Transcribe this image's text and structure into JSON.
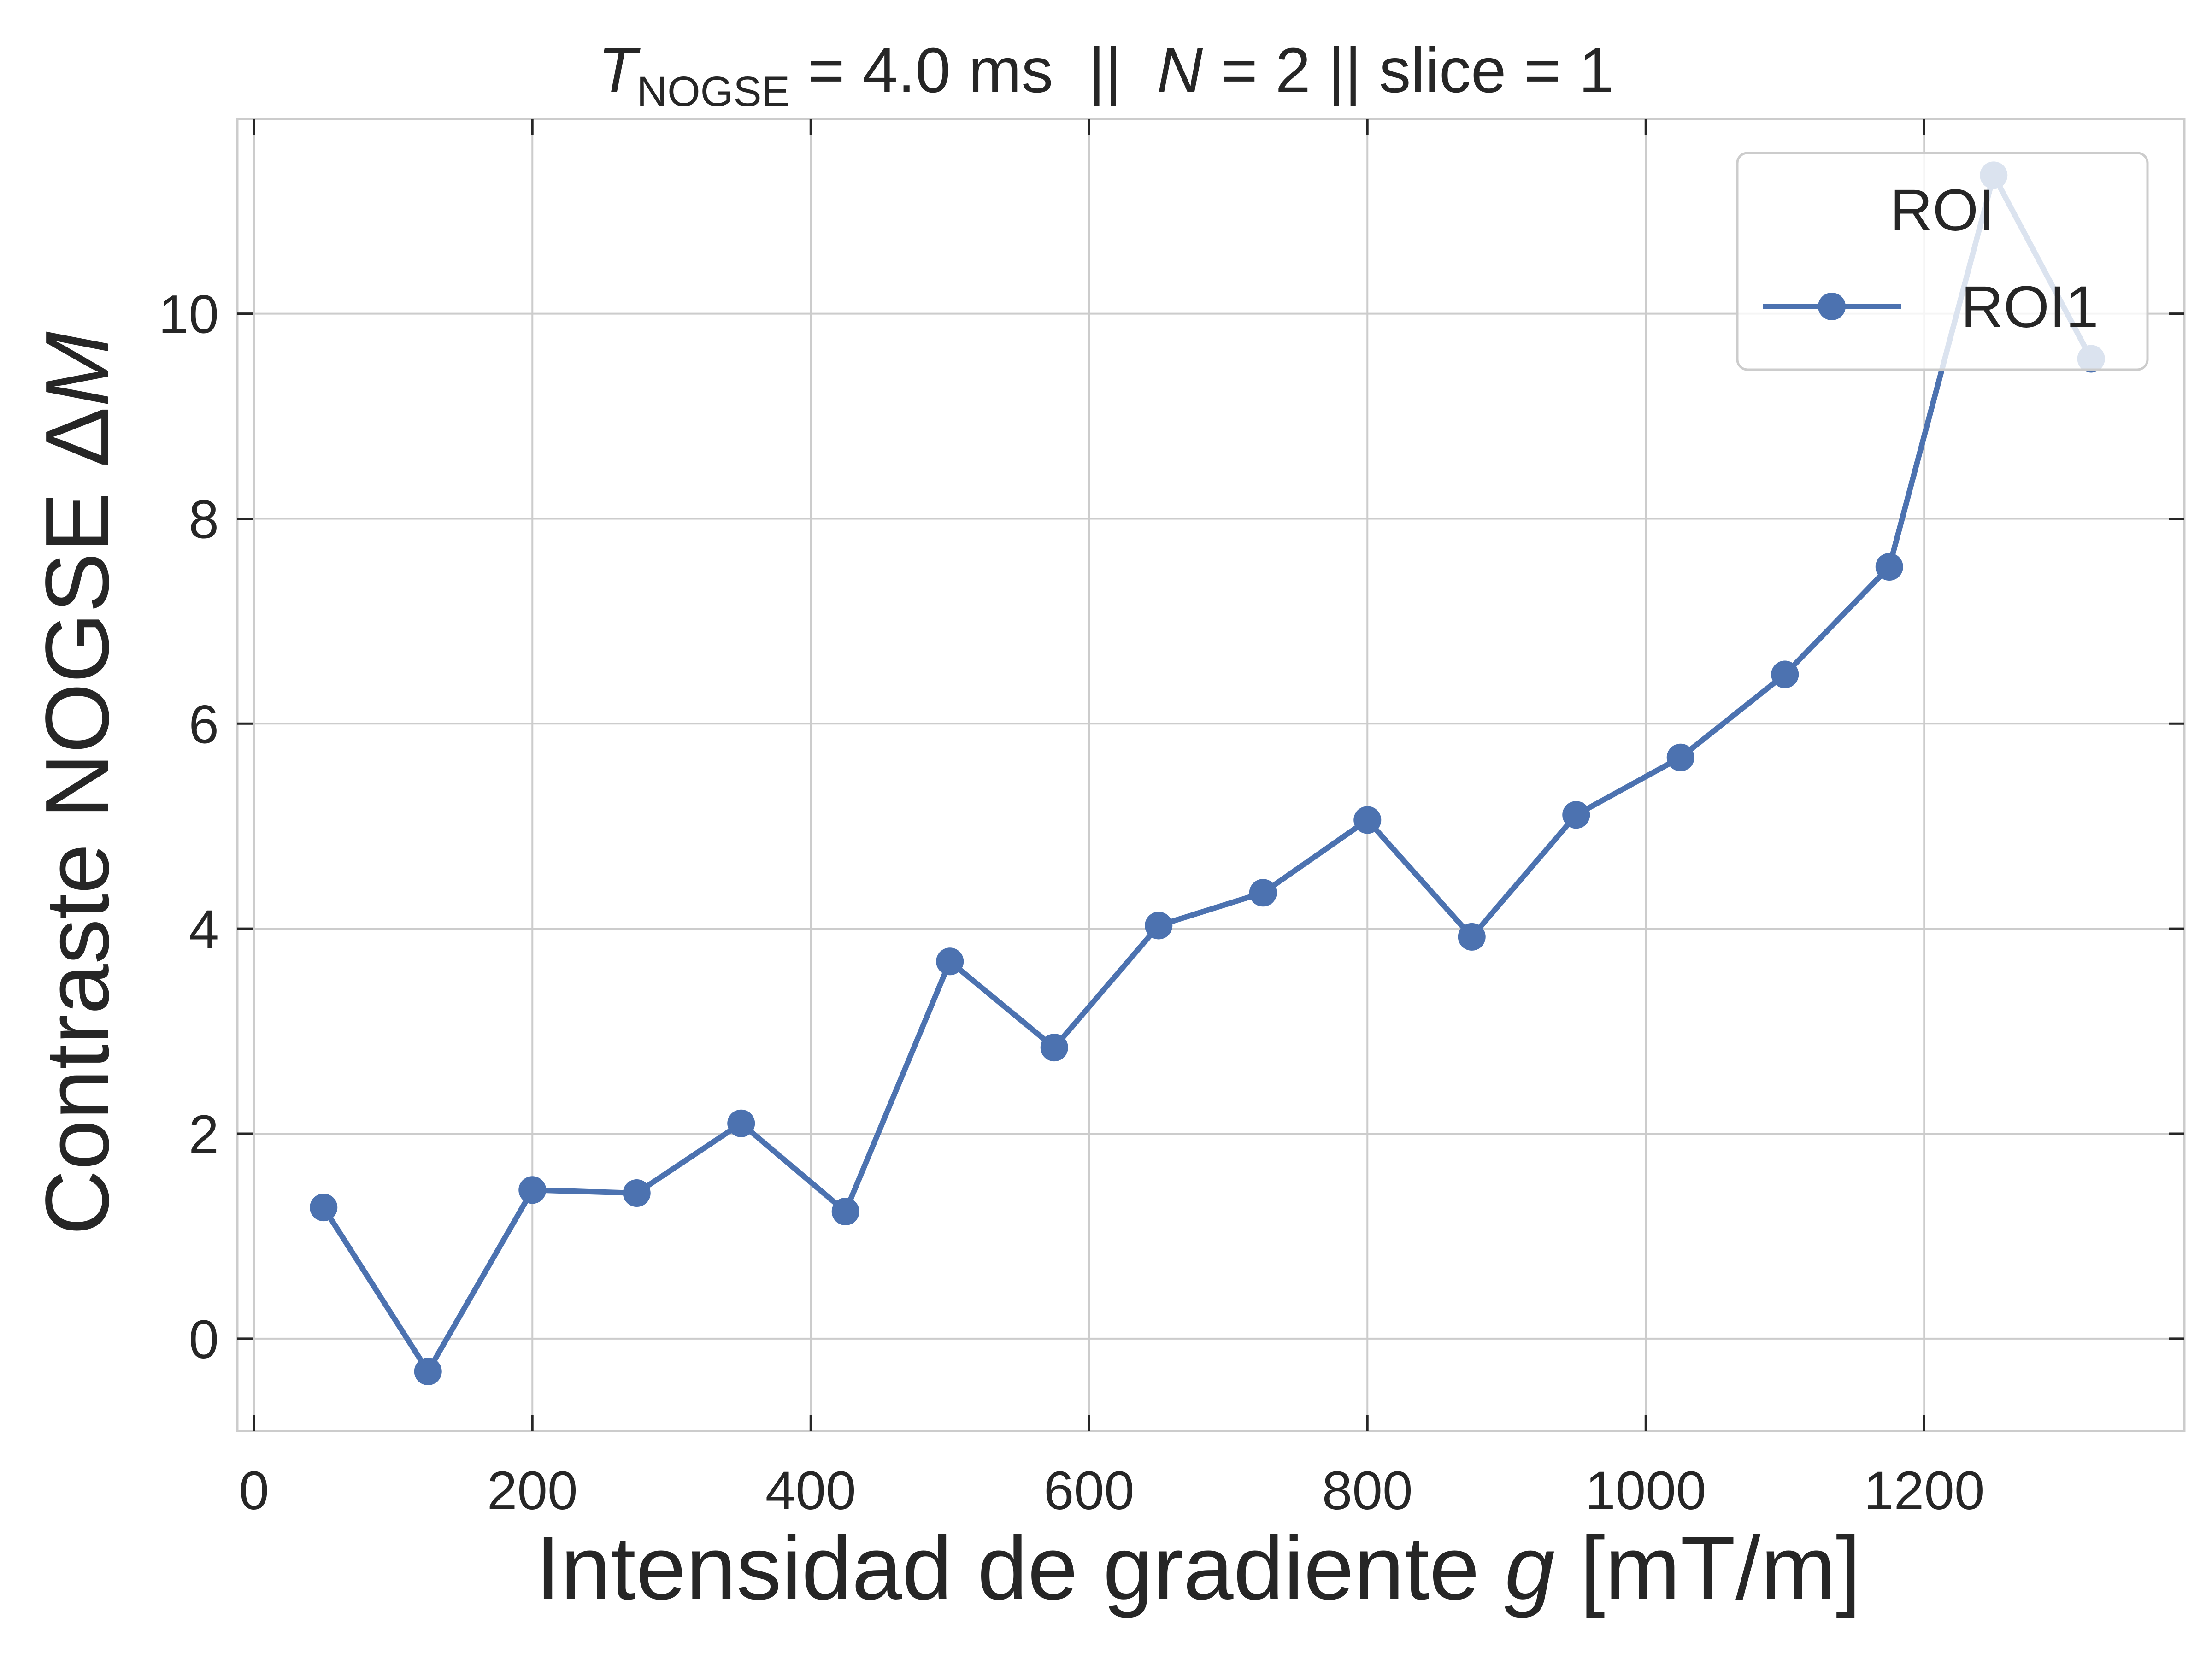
{
  "chart_data": {
    "type": "line",
    "title": {
      "t_symbol": "T",
      "t_subscript": "NOGSE",
      "t_rest": " = 4.0 ms  ||  ",
      "n_symbol": "N",
      "n_rest": " = 2 || slice = 1"
    },
    "xlabel": {
      "text": "Intensidad de gradiente ",
      "var": "g",
      "unit": " [mT/m]"
    },
    "ylabel": {
      "text": "Contraste NOGSE Δ",
      "var": "M"
    },
    "xlim": [
      -12,
      1387
    ],
    "ylim": [
      -0.9,
      11.9
    ],
    "xticks": [
      0,
      200,
      400,
      600,
      800,
      1000,
      1200
    ],
    "yticks": [
      0,
      2,
      4,
      6,
      8,
      10
    ],
    "grid": true,
    "legend": {
      "title": "ROI",
      "placement": "top-right"
    },
    "series": [
      {
        "name": "ROI1",
        "color": "#4c72b0",
        "x": [
          50,
          125,
          200,
          275,
          350,
          425,
          500,
          575,
          650,
          725,
          800,
          875,
          950,
          1025,
          1100,
          1175,
          1250,
          1320
        ],
        "y": [
          1.28,
          -0.32,
          1.45,
          1.42,
          2.1,
          1.24,
          3.68,
          2.84,
          4.03,
          4.35,
          5.06,
          3.92,
          5.11,
          5.67,
          6.48,
          7.53,
          11.35,
          9.56
        ]
      }
    ]
  }
}
